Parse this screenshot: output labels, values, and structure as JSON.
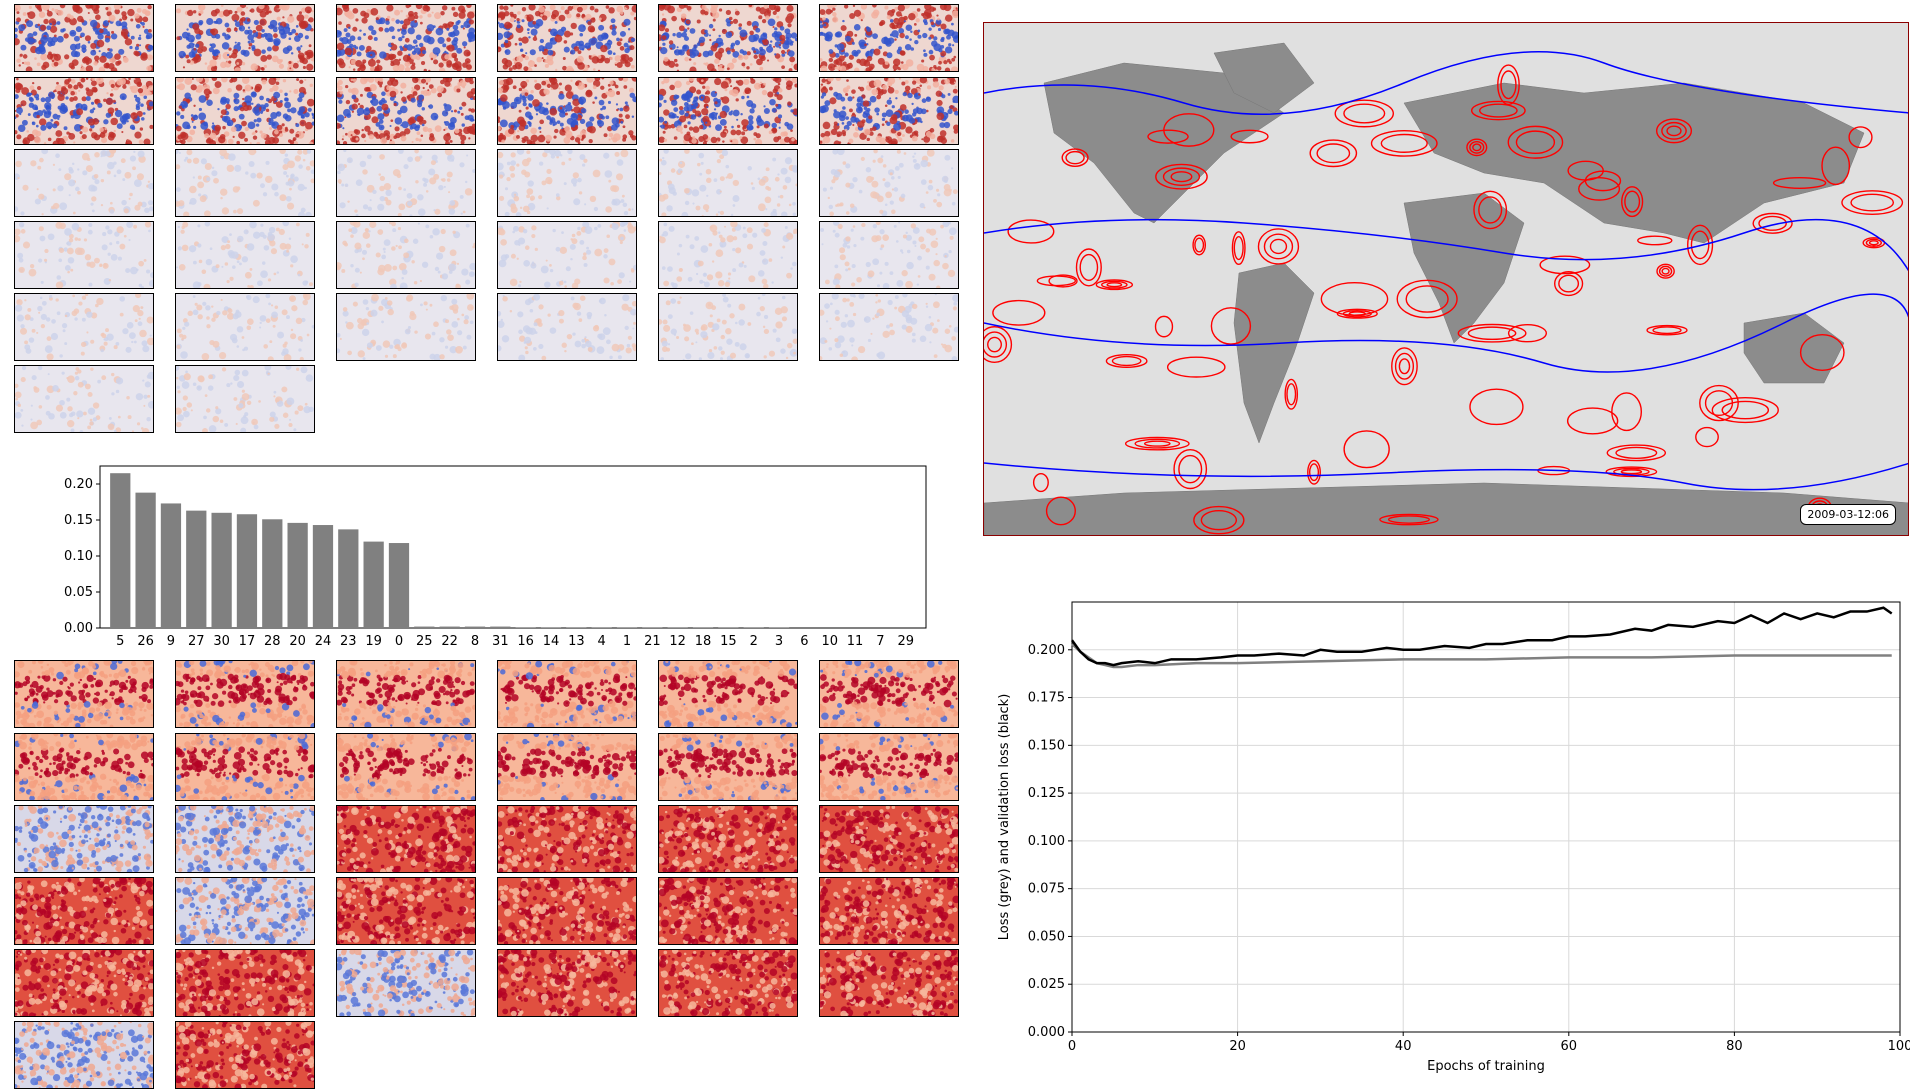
{
  "weight_grids": {
    "top": {
      "rows": 6,
      "cols": 6,
      "count": 32,
      "rows_styles": [
        "blue-red",
        "blue-red",
        "faint",
        "faint",
        "faint",
        "faint"
      ]
    },
    "bottom": {
      "rows": 6,
      "cols": 6,
      "count": 32
    }
  },
  "world_map": {
    "timestamp": "2009-03-12:06",
    "contour_colors": {
      "positive": "#ff0000",
      "negative": "#0000ff"
    },
    "land_color": "#8c8c8c",
    "ocean_color": "#e0e0e0",
    "frame_color": "#8b0000"
  },
  "chart_data": [
    {
      "type": "bar",
      "title": "",
      "xlabel": "",
      "ylabel": "",
      "categories": [
        "5",
        "26",
        "9",
        "27",
        "30",
        "17",
        "28",
        "20",
        "24",
        "23",
        "19",
        "0",
        "25",
        "22",
        "8",
        "31",
        "16",
        "14",
        "13",
        "4",
        "1",
        "21",
        "12",
        "18",
        "15",
        "2",
        "3",
        "6",
        "10",
        "11",
        "7",
        "29"
      ],
      "values": [
        0.215,
        0.188,
        0.173,
        0.163,
        0.16,
        0.158,
        0.151,
        0.146,
        0.143,
        0.137,
        0.12,
        0.118,
        0.002,
        0.002,
        0.002,
        0.002,
        0.001,
        0.001,
        0.001,
        0.001,
        0.001,
        0.001,
        0.001,
        0.001,
        0.001,
        0.001,
        0.001,
        0,
        0,
        0,
        0,
        0
      ],
      "yticks": [
        "0.00",
        "0.05",
        "0.10",
        "0.15",
        "0.20"
      ],
      "ylim": [
        0,
        0.225
      ],
      "bar_color": "#808080"
    },
    {
      "type": "line",
      "title": "",
      "xlabel": "Epochs of training",
      "ylabel": "Loss (grey) and validation loss (black)",
      "xlim": [
        0,
        100
      ],
      "ylim": [
        0,
        0.225
      ],
      "xticks": [
        "0",
        "20",
        "40",
        "60",
        "80",
        "100"
      ],
      "yticks": [
        "0.000",
        "0.025",
        "0.050",
        "0.075",
        "0.100",
        "0.125",
        "0.150",
        "0.175",
        "0.200"
      ],
      "grid": true,
      "series": [
        {
          "color": "#808080",
          "x": [
            0,
            1,
            2,
            3,
            4,
            5,
            6,
            8,
            10,
            15,
            20,
            30,
            40,
            50,
            60,
            70,
            80,
            90,
            99
          ],
          "y": [
            0.203,
            0.199,
            0.196,
            0.193,
            0.192,
            0.191,
            0.191,
            0.192,
            0.192,
            0.193,
            0.193,
            0.194,
            0.195,
            0.195,
            0.196,
            0.196,
            0.197,
            0.197,
            0.197
          ]
        },
        {
          "color": "#000000",
          "x": [
            0,
            1,
            2,
            3,
            4,
            5,
            6,
            8,
            10,
            12,
            15,
            18,
            20,
            22,
            25,
            28,
            30,
            32,
            35,
            38,
            40,
            42,
            45,
            48,
            50,
            52,
            55,
            58,
            60,
            62,
            65,
            68,
            70,
            72,
            75,
            78,
            80,
            82,
            84,
            86,
            88,
            90,
            92,
            94,
            96,
            98,
            99
          ],
          "y": [
            0.205,
            0.199,
            0.195,
            0.193,
            0.193,
            0.192,
            0.193,
            0.194,
            0.193,
            0.195,
            0.195,
            0.196,
            0.197,
            0.197,
            0.198,
            0.197,
            0.2,
            0.199,
            0.199,
            0.201,
            0.2,
            0.2,
            0.202,
            0.201,
            0.203,
            0.203,
            0.205,
            0.205,
            0.207,
            0.207,
            0.208,
            0.211,
            0.21,
            0.213,
            0.212,
            0.215,
            0.214,
            0.218,
            0.214,
            0.219,
            0.216,
            0.219,
            0.217,
            0.22,
            0.22,
            0.222,
            0.219
          ]
        }
      ]
    }
  ]
}
